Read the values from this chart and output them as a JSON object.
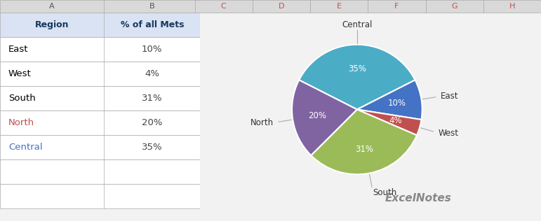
{
  "labels": [
    "Central",
    "East",
    "West",
    "South",
    "North"
  ],
  "values": [
    35,
    10,
    4,
    31,
    20
  ],
  "colors": [
    "#4BACC6",
    "#4472C4",
    "#C0504D",
    "#9BBB59",
    "#8064A2"
  ],
  "pct_labels": [
    "35%",
    "10%",
    "4%",
    "31%",
    "20%"
  ],
  "table_header_bg": "#DAE3F3",
  "table_border_color": "#AAAAAA",
  "table_col_a_header": "Region",
  "table_col_b_header": "% of all Mets",
  "table_rows": [
    [
      "East",
      "10%"
    ],
    [
      "West",
      "4%"
    ],
    [
      "South",
      "31%"
    ],
    [
      "North",
      "20%"
    ],
    [
      "Central",
      "35%"
    ]
  ],
  "region_text_colors": {
    "East": "#000000",
    "West": "#000000",
    "South": "#000000",
    "North": "#C0504D",
    "Central": "#4472C4"
  },
  "col_header_color": "#17375E",
  "bg_color": "#F2F2F2",
  "col_letter_color": "#C0504D",
  "watermark_text": "ExcelNotes",
  "excel_bg": "#E8E8E8",
  "table_bg": "#FFFFFF"
}
